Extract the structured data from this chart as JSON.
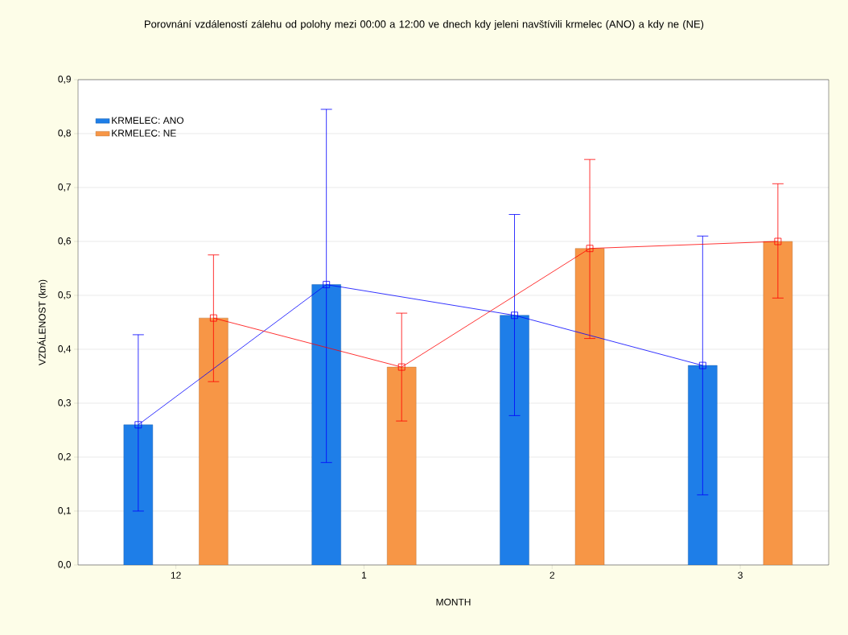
{
  "chart_data": {
    "type": "bar",
    "title": "Porovnání vzdáleností zálehu od polohy mezi 00:00 a 12:00 ve dnech kdy jeleni navštívili krmelec (ANO) a kdy ne (NE)",
    "xlabel": "MONTH",
    "ylabel": "VZDÁLENOST (km)",
    "categories": [
      "12",
      "1",
      "2",
      "3"
    ],
    "series": [
      {
        "name": "KRMELEC: ANO",
        "color": "#1e7ee8",
        "values": [
          0.26,
          0.52,
          0.463,
          0.37
        ]
      },
      {
        "name": "KRMELEC: NE",
        "color": "#f79646",
        "values": [
          0.458,
          0.367,
          0.587,
          0.6
        ]
      },
      {
        "type": "line",
        "color": "#0000ff",
        "marker": "square",
        "values": [
          0.26,
          0.52,
          0.463,
          0.37
        ],
        "errors": [
          [
            0.1,
            0.427
          ],
          [
            0.19,
            0.845
          ],
          [
            0.277,
            0.65
          ],
          [
            0.13,
            0.61
          ]
        ]
      },
      {
        "type": "line",
        "color": "#ff0000",
        "marker": "square",
        "values": [
          0.458,
          0.367,
          0.587,
          0.6
        ],
        "errors": [
          [
            0.34,
            0.575
          ],
          [
            0.267,
            0.467
          ],
          [
            0.42,
            0.752
          ],
          [
            0.495,
            0.707
          ]
        ]
      }
    ],
    "ylim": [
      0,
      0.9
    ],
    "yticks": [
      {
        "value": 0,
        "label": "0,0"
      },
      {
        "value": 0.1,
        "label": "0,1"
      },
      {
        "value": 0.2,
        "label": "0,2"
      },
      {
        "value": 0.3,
        "label": "0,3"
      },
      {
        "value": 0.4,
        "label": "0,4"
      },
      {
        "value": 0.5,
        "label": "0,5"
      },
      {
        "value": 0.6,
        "label": "0,6"
      },
      {
        "value": 0.7,
        "label": "0,7"
      },
      {
        "value": 0.8,
        "label": "0,8"
      },
      {
        "value": 0.9,
        "label": "0,9"
      }
    ],
    "grid": "y",
    "legend": "top left"
  }
}
